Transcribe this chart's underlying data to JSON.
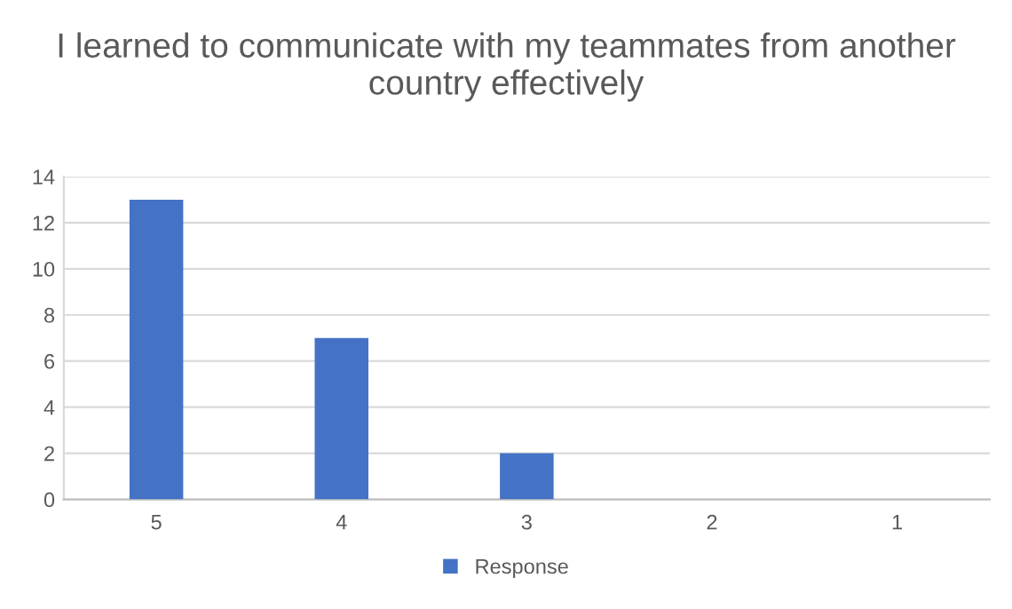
{
  "chart_data": {
    "type": "bar",
    "title": "I learned to communicate with my teammates from another country effectively",
    "categories": [
      "5",
      "4",
      "3",
      "2",
      "1"
    ],
    "series": [
      {
        "name": "Response",
        "color": "#4472c4",
        "values": [
          13,
          7,
          2,
          0,
          0
        ]
      }
    ],
    "ylim": [
      0,
      14
    ],
    "yticks": [
      0,
      2,
      4,
      6,
      8,
      10,
      12,
      14
    ],
    "grid": "y",
    "legend": "bottom"
  }
}
